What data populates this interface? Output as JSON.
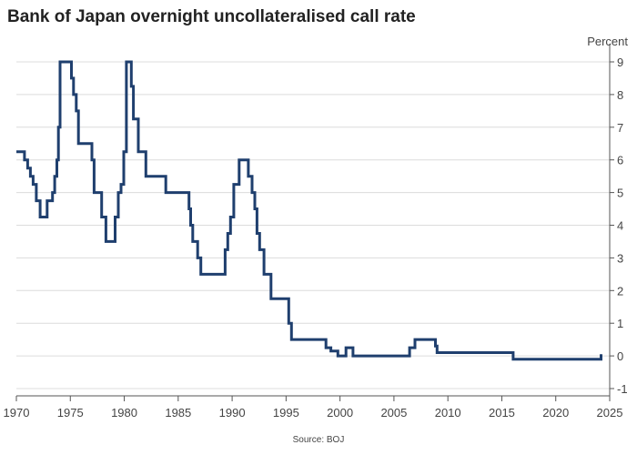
{
  "chart_data": {
    "type": "line",
    "title": "Bank of Japan overnight uncollateralised call rate",
    "ylabel": "Percent",
    "source": "Source: BOJ",
    "xlim": [
      1970,
      2025
    ],
    "ylim": [
      -1,
      9
    ],
    "x_ticks": [
      1970,
      1975,
      1980,
      1985,
      1990,
      1995,
      2000,
      2005,
      2010,
      2015,
      2020,
      2025
    ],
    "y_ticks": [
      -1,
      0,
      1,
      2,
      3,
      4,
      5,
      6,
      7,
      8,
      9
    ],
    "grid": "horizontal",
    "line_color": "#1f3f6e",
    "step": true,
    "series": [
      {
        "x": [
          1970.0,
          1970.75,
          1971.05,
          1971.3,
          1971.55,
          1971.85,
          1972.2,
          1972.85,
          1973.35,
          1973.55,
          1973.75,
          1973.9,
          1974.05,
          1975.1,
          1975.3,
          1975.55,
          1975.75,
          1977.0,
          1977.2,
          1977.35,
          1977.9,
          1978.3,
          1979.15,
          1979.45,
          1979.7,
          1979.95,
          1980.2,
          1980.65,
          1980.85,
          1981.05,
          1981.3,
          1982.0,
          1983.85,
          1986.0,
          1986.15,
          1986.35,
          1986.8,
          1987.1,
          1989.35,
          1989.6,
          1989.85,
          1990.15,
          1990.65,
          1991.5,
          1991.85,
          1992.1,
          1992.3,
          1992.55,
          1992.95,
          1993.6,
          1995.25,
          1995.5,
          1998.7,
          1999.15,
          1999.8,
          2000.55,
          2000.95,
          2001.2,
          2006.45,
          2006.95,
          2007.7,
          2008.85,
          2009.0,
          2016.05,
          2024.2
        ],
        "y": [
          6.25,
          6.0,
          5.75,
          5.5,
          5.25,
          4.75,
          4.25,
          4.75,
          5.0,
          5.5,
          6.0,
          7.0,
          9.0,
          8.5,
          8.0,
          7.5,
          6.5,
          6.0,
          5.0,
          5.0,
          4.25,
          3.5,
          4.25,
          5.0,
          5.25,
          6.25,
          9.0,
          8.25,
          7.25,
          7.25,
          6.25,
          5.5,
          5.0,
          4.5,
          4.0,
          3.5,
          3.0,
          2.5,
          3.25,
          3.75,
          4.25,
          5.25,
          6.0,
          5.5,
          5.0,
          4.5,
          3.75,
          3.25,
          2.5,
          1.75,
          1.0,
          0.5,
          0.25,
          0.15,
          0.0,
          0.25,
          0.25,
          0.0,
          0.25,
          0.5,
          0.5,
          0.3,
          0.1,
          -0.1,
          0.05
        ]
      }
    ]
  }
}
